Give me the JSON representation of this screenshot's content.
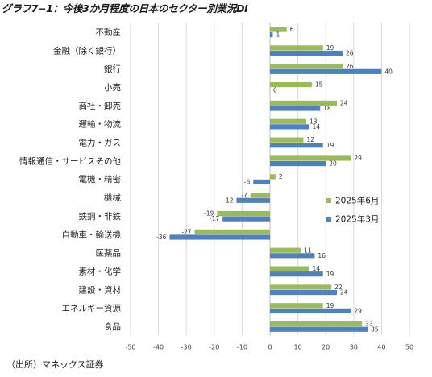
{
  "title": "グラフ7−1：今後3か月程度の日本のセクター別業況DI",
  "source": "（出所）マネックス証券",
  "colors": {
    "jun": "#9BBB59",
    "mar": "#4F81BD",
    "grid": "#d9d9d9",
    "axis": "#bfbfbf"
  },
  "chart_data": {
    "type": "bar",
    "orientation": "horizontal",
    "categories": [
      "不動産",
      "金融（除く銀行）",
      "銀行",
      "小売",
      "商社・卸売",
      "運輸・物流",
      "電力・ガス",
      "情報通信・サービスその他",
      "電機・精密",
      "機械",
      "鉄鋼・非鉄",
      "自動車・輸送機",
      "医薬品",
      "素材・化学",
      "建設・資材",
      "エネルギー資源",
      "食品"
    ],
    "series": [
      {
        "name": "2025年6月",
        "values": [
          6,
          19,
          26,
          15,
          24,
          13,
          12,
          29,
          2,
          -7,
          -19,
          -27,
          11,
          14,
          22,
          19,
          33
        ]
      },
      {
        "name": "2025年3月",
        "values": [
          1,
          26,
          40,
          0,
          18,
          14,
          19,
          20,
          -6,
          -12,
          -17,
          -36,
          16,
          19,
          24,
          29,
          35
        ]
      }
    ],
    "xlim": [
      -50,
      50
    ],
    "xticks": [
      -50,
      -40,
      -30,
      -20,
      -10,
      0,
      10,
      20,
      30,
      40,
      50
    ],
    "grid": true,
    "legend_position": "right"
  }
}
